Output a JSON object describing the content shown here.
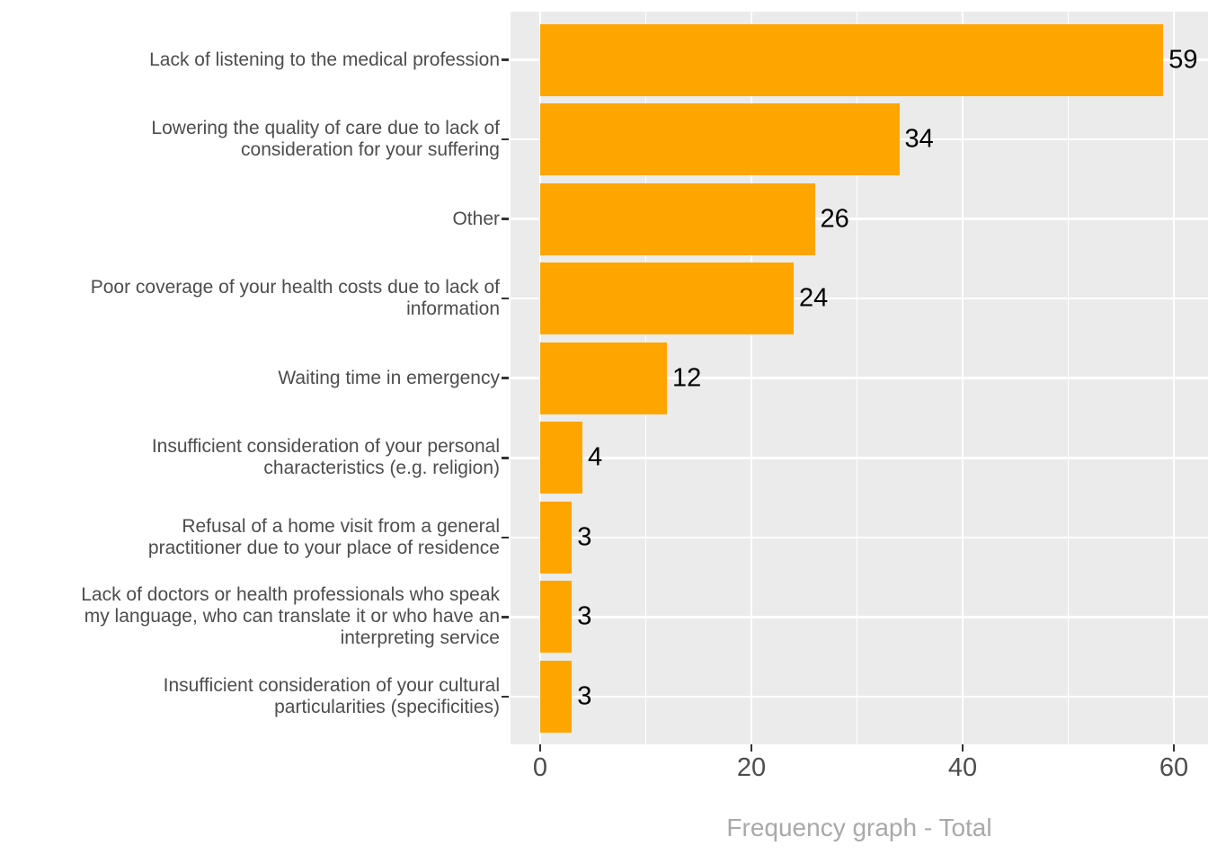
{
  "chart_data": {
    "type": "bar",
    "orientation": "horizontal",
    "title": "",
    "xlabel": "Frequency graph - Total",
    "ylabel": "",
    "categories": [
      "Lack of listening to the medical profession",
      "Lowering the quality of care due to lack of\nconsideration for your suffering",
      "Other",
      "Poor coverage of your health costs due to lack of\ninformation",
      "Waiting time in emergency",
      "Insufficient consideration of your personal\ncharacteristics (e.g. religion)",
      "Refusal of a home visit from a general\npractitioner due to your place of residence",
      "Lack of doctors or health professionals who speak\nmy language, who can translate it or who have an\ninterpreting service",
      "Insufficient consideration of your cultural\nparticularities (specificities)"
    ],
    "values": [
      59,
      34,
      26,
      24,
      12,
      4,
      3,
      3,
      3
    ],
    "x_ticks": [
      0,
      20,
      40,
      60
    ],
    "x_minor_ticks": [
      10,
      30,
      50
    ],
    "xlim": [
      0,
      63
    ],
    "grid": true,
    "legend": false,
    "colors": {
      "bar": "#FFA500",
      "panel_background": "#EBEBEB",
      "gridline": "#FFFFFF",
      "axis_text": "#4D4D4D",
      "value_label": "#000000",
      "xlabel_text": "#A9A9A9",
      "tick_mark": "#333333"
    }
  }
}
